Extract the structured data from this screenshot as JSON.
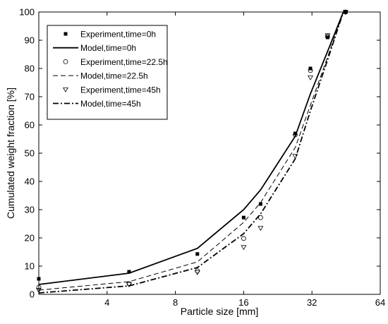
{
  "chart_data": {
    "type": "line",
    "xlabel": "Particle size [mm]",
    "ylabel": "Cumulated weight fraction [%]",
    "xscale": "log2",
    "xlim": [
      2,
      64
    ],
    "ylim": [
      0,
      100
    ],
    "xticks": [
      4,
      8,
      16,
      32,
      64
    ],
    "xtick_labels": [
      "4",
      "8",
      "16",
      "32",
      "64"
    ],
    "yticks": [
      0,
      10,
      20,
      30,
      40,
      50,
      60,
      70,
      80,
      90,
      100
    ],
    "ytick_labels": [
      "0",
      "10",
      "20",
      "30",
      "40",
      "50",
      "60",
      "70",
      "80",
      "90",
      "100"
    ],
    "grid": false,
    "legend_position": "top-left",
    "series": [
      {
        "name": "Experiment,time=0h",
        "kind": "marker",
        "marker": "filled-square",
        "x": [
          2.0,
          5.0,
          10.0,
          16.0,
          19.0,
          27.0,
          31.5,
          37.5,
          45.0
        ],
        "y": [
          5.5,
          8.0,
          14.3,
          27.2,
          32.0,
          57.0,
          80.0,
          91.0,
          100.0
        ]
      },
      {
        "name": "Model,time=0h",
        "kind": "line",
        "dash": "solid",
        "x": [
          2.0,
          5.0,
          10.0,
          16.0,
          19.0,
          27.0,
          31.5,
          37.5,
          44.0
        ],
        "y": [
          3.5,
          7.5,
          16.3,
          30.0,
          37.0,
          56.0,
          71.0,
          86.0,
          100.0
        ]
      },
      {
        "name": "Experiment,time=22.5h",
        "kind": "marker",
        "marker": "open-circle",
        "x": [
          2.0,
          5.0,
          10.0,
          16.0,
          19.0,
          27.0,
          31.5,
          37.5,
          45.0
        ],
        "y": [
          2.5,
          3.8,
          8.3,
          19.8,
          27.2,
          56.5,
          79.3,
          91.3,
          100.0
        ]
      },
      {
        "name": "Model,time=22.5h",
        "kind": "line",
        "dash": "dashed",
        "x": [
          2.0,
          5.0,
          10.0,
          16.0,
          19.0,
          27.0,
          31.5,
          37.5,
          44.0
        ],
        "y": [
          1.5,
          4.5,
          11.5,
          25.5,
          32.5,
          52.0,
          67.0,
          84.0,
          100.0
        ]
      },
      {
        "name": "Experiment,time=45h",
        "kind": "marker",
        "marker": "open-triangle-down",
        "x": [
          2.0,
          5.0,
          10.0,
          16.0,
          19.0,
          27.0,
          31.5,
          37.5,
          45.0
        ],
        "y": [
          1.5,
          3.5,
          7.8,
          16.7,
          23.5,
          49.0,
          76.8,
          91.7,
          100.0
        ]
      },
      {
        "name": "Model,time=45h",
        "kind": "line",
        "dash": "dash-dot",
        "x": [
          2.0,
          5.0,
          10.0,
          16.0,
          19.0,
          27.0,
          31.5,
          37.5,
          44.0
        ],
        "y": [
          0.5,
          3.0,
          9.5,
          21.5,
          28.5,
          48.0,
          65.0,
          83.0,
          100.0
        ]
      }
    ]
  }
}
